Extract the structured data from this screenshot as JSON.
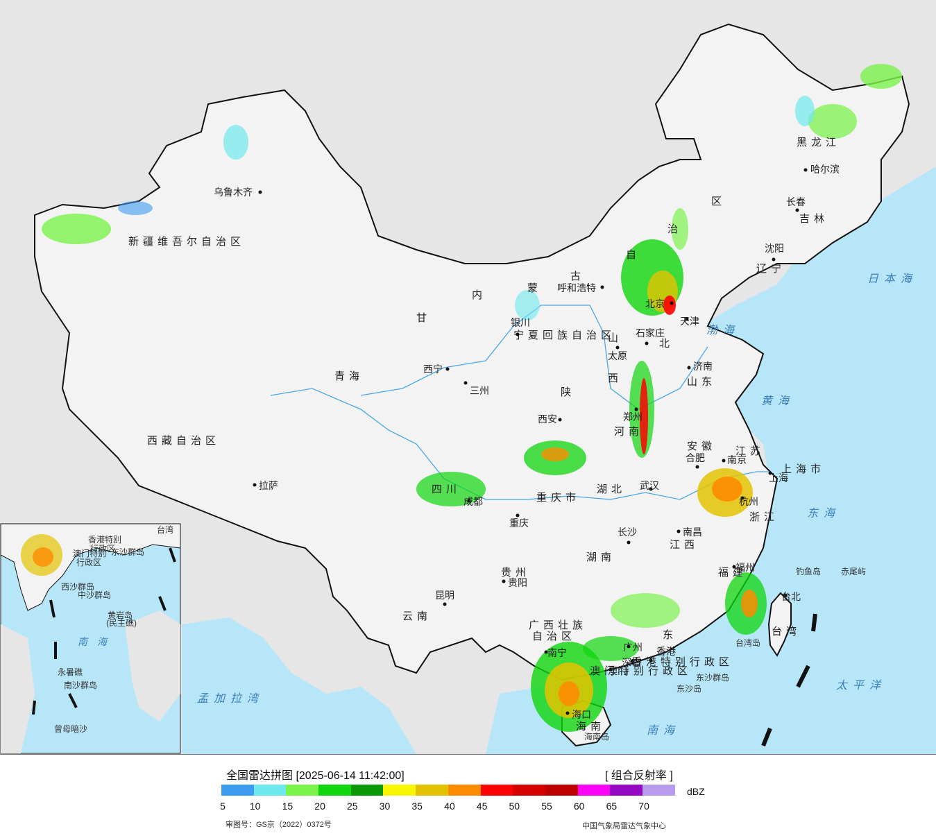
{
  "map": {
    "colors": {
      "sea": "#b8e6f9",
      "land": "#f3f3f3",
      "neighbor_land": "#e6e6e6",
      "border": "#111111",
      "river": "#49a7e6"
    },
    "provinces": [
      {
        "id": "xinjiang",
        "text": "新疆维吾尔自治区"
      },
      {
        "id": "xizang",
        "text": "西藏自治区"
      },
      {
        "id": "qinghai",
        "text": "青海"
      },
      {
        "id": "gansu",
        "text": "甘"
      },
      {
        "id": "sichuan",
        "text": "四川"
      },
      {
        "id": "yunnan",
        "text": "云南"
      },
      {
        "id": "guizhou",
        "text": "贵州"
      },
      {
        "id": "guangxi-1",
        "text": "广西壮族"
      },
      {
        "id": "guangxi-2",
        "text": "自治区"
      },
      {
        "id": "chongqing",
        "text": "重庆市"
      },
      {
        "id": "shaanxi",
        "text": "陕"
      },
      {
        "id": "shanxi-1",
        "text": "山"
      },
      {
        "id": "shanxi-2",
        "text": "西"
      },
      {
        "id": "henan",
        "text": "河南"
      },
      {
        "id": "hubei",
        "text": "湖北"
      },
      {
        "id": "hunan",
        "text": "湖南"
      },
      {
        "id": "jiangxi",
        "text": "江西"
      },
      {
        "id": "fujian",
        "text": "福建"
      },
      {
        "id": "zhejiang",
        "text": "浙江"
      },
      {
        "id": "anhui",
        "text": "安徽"
      },
      {
        "id": "jiangsu",
        "text": "江苏"
      },
      {
        "id": "shandong",
        "text": "山东"
      },
      {
        "id": "hebei",
        "text": "北"
      },
      {
        "id": "shanghai",
        "text": "上海市"
      },
      {
        "id": "taiwan",
        "text": "台湾"
      },
      {
        "id": "guangdong",
        "text": "东"
      },
      {
        "id": "hainan",
        "text": "海南"
      },
      {
        "id": "liaoning",
        "text": "辽宁"
      },
      {
        "id": "jilin",
        "text": "吉林"
      },
      {
        "id": "heilongjiang",
        "text": "黑龙江"
      },
      {
        "id": "neimenggu-1",
        "text": "内"
      },
      {
        "id": "neimenggu-2",
        "text": "蒙"
      },
      {
        "id": "neimenggu-3",
        "text": "古"
      },
      {
        "id": "neimenggu-4",
        "text": "自"
      },
      {
        "id": "neimenggu-5",
        "text": "治"
      },
      {
        "id": "neimenggu-6",
        "text": "区"
      },
      {
        "id": "ningxia",
        "text": "宁夏回族自治区"
      },
      {
        "id": "hongkong",
        "text": "香港特别行政区"
      },
      {
        "id": "macao",
        "text": "澳门特别行政区"
      }
    ],
    "cities": [
      {
        "id": "urumqi",
        "text": "乌鲁木齐"
      },
      {
        "id": "lhasa",
        "text": "拉萨"
      },
      {
        "id": "xining",
        "text": "西宁"
      },
      {
        "id": "lanzhou",
        "text": "三州"
      },
      {
        "id": "yinchuan",
        "text": "银川"
      },
      {
        "id": "hohhot",
        "text": "呼和浩特"
      },
      {
        "id": "taiyuan",
        "text": "太原"
      },
      {
        "id": "shijiazhuang",
        "text": "石家庄"
      },
      {
        "id": "beijing",
        "text": "北京"
      },
      {
        "id": "tianjin",
        "text": "天津"
      },
      {
        "id": "jinan",
        "text": "济南"
      },
      {
        "id": "xian",
        "text": "西安"
      },
      {
        "id": "zhengzhou",
        "text": "郑州"
      },
      {
        "id": "chengdu",
        "text": "成都"
      },
      {
        "id": "chongqing-city",
        "text": "重庆"
      },
      {
        "id": "wuhan",
        "text": "武汉"
      },
      {
        "id": "hefei",
        "text": "合肥"
      },
      {
        "id": "nanjing",
        "text": "南京"
      },
      {
        "id": "shanghai-city",
        "text": "上海"
      },
      {
        "id": "hangzhou",
        "text": "杭州"
      },
      {
        "id": "nanchang",
        "text": "南昌"
      },
      {
        "id": "changsha",
        "text": "长沙"
      },
      {
        "id": "fuzhou",
        "text": "福州"
      },
      {
        "id": "taibei",
        "text": "台北"
      },
      {
        "id": "guiyang",
        "text": "贵阳"
      },
      {
        "id": "kunming",
        "text": "昆明"
      },
      {
        "id": "nanning",
        "text": "南宁"
      },
      {
        "id": "guangzhou",
        "text": "广州"
      },
      {
        "id": "shenzhen",
        "text": "深圳"
      },
      {
        "id": "hongkong-city",
        "text": "香港"
      },
      {
        "id": "macao-city",
        "text": "澳门"
      },
      {
        "id": "haikou",
        "text": "海口"
      },
      {
        "id": "shenyang",
        "text": "沈阳"
      },
      {
        "id": "changchun",
        "text": "长春"
      },
      {
        "id": "harbin",
        "text": "哈尔滨"
      }
    ],
    "seas": [
      {
        "id": "bohai",
        "text": "渤海"
      },
      {
        "id": "huanghai",
        "text": "黄海"
      },
      {
        "id": "donghai",
        "text": "东海"
      },
      {
        "id": "nanhai",
        "text": "南海"
      },
      {
        "id": "taipingyang",
        "text": "太平洋"
      },
      {
        "id": "ribenhai",
        "text": "日本海"
      },
      {
        "id": "mengjialawan",
        "text": "孟加拉湾"
      }
    ],
    "islands": [
      {
        "id": "diaoyudao",
        "text": "钓鱼岛"
      },
      {
        "id": "chiweiyu",
        "text": "赤尾屿"
      },
      {
        "id": "taiwandao",
        "text": "台湾岛"
      },
      {
        "id": "dongshaqundao",
        "text": "东沙群岛"
      },
      {
        "id": "dongshadao",
        "text": "东沙岛"
      },
      {
        "id": "hainandao",
        "text": "海南岛"
      }
    ],
    "inset": {
      "sea": "南海",
      "labels": [
        {
          "id": "xisha",
          "text": "西沙群岛"
        },
        {
          "id": "zhongsha",
          "text": "中沙群岛"
        },
        {
          "id": "huangyan",
          "text": "黄岩岛"
        },
        {
          "id": "minzhujiao",
          "text": "(民主礁)"
        },
        {
          "id": "yongshu",
          "text": "永暑礁"
        },
        {
          "id": "nansha",
          "text": "南沙群岛"
        },
        {
          "id": "zengmu",
          "text": "曾母暗沙"
        },
        {
          "id": "dongsha-inset",
          "text": "东沙群岛"
        },
        {
          "id": "taiwan-inset",
          "text": "台湾"
        },
        {
          "id": "hk-inset-1",
          "text": "香港特别"
        },
        {
          "id": "hk-inset-2",
          "text": "行政区"
        },
        {
          "id": "macao-inset-1",
          "text": "澳门特别"
        },
        {
          "id": "macao-inset-2",
          "text": "行政区"
        }
      ]
    }
  },
  "legend": {
    "title": "全国雷达拼图 [2025-06-14 11:42:00]",
    "product": "[ 组合反射率 ]",
    "unit": "dBZ",
    "ticks": [
      "5",
      "10",
      "15",
      "20",
      "25",
      "30",
      "35",
      "40",
      "45",
      "50",
      "55",
      "60",
      "65",
      "70"
    ],
    "colors": [
      "#3d9bf0",
      "#6ee8ec",
      "#7cf24c",
      "#0fd60d",
      "#0b9807",
      "#f7f703",
      "#e3c301",
      "#fd8c01",
      "#fb0202",
      "#d60000",
      "#bf0000",
      "#fb03f9",
      "#9509c3",
      "#b79cee"
    ],
    "approval": "审图号：GS京（2022）0372号",
    "source": "中国气象局雷达气象中心"
  }
}
